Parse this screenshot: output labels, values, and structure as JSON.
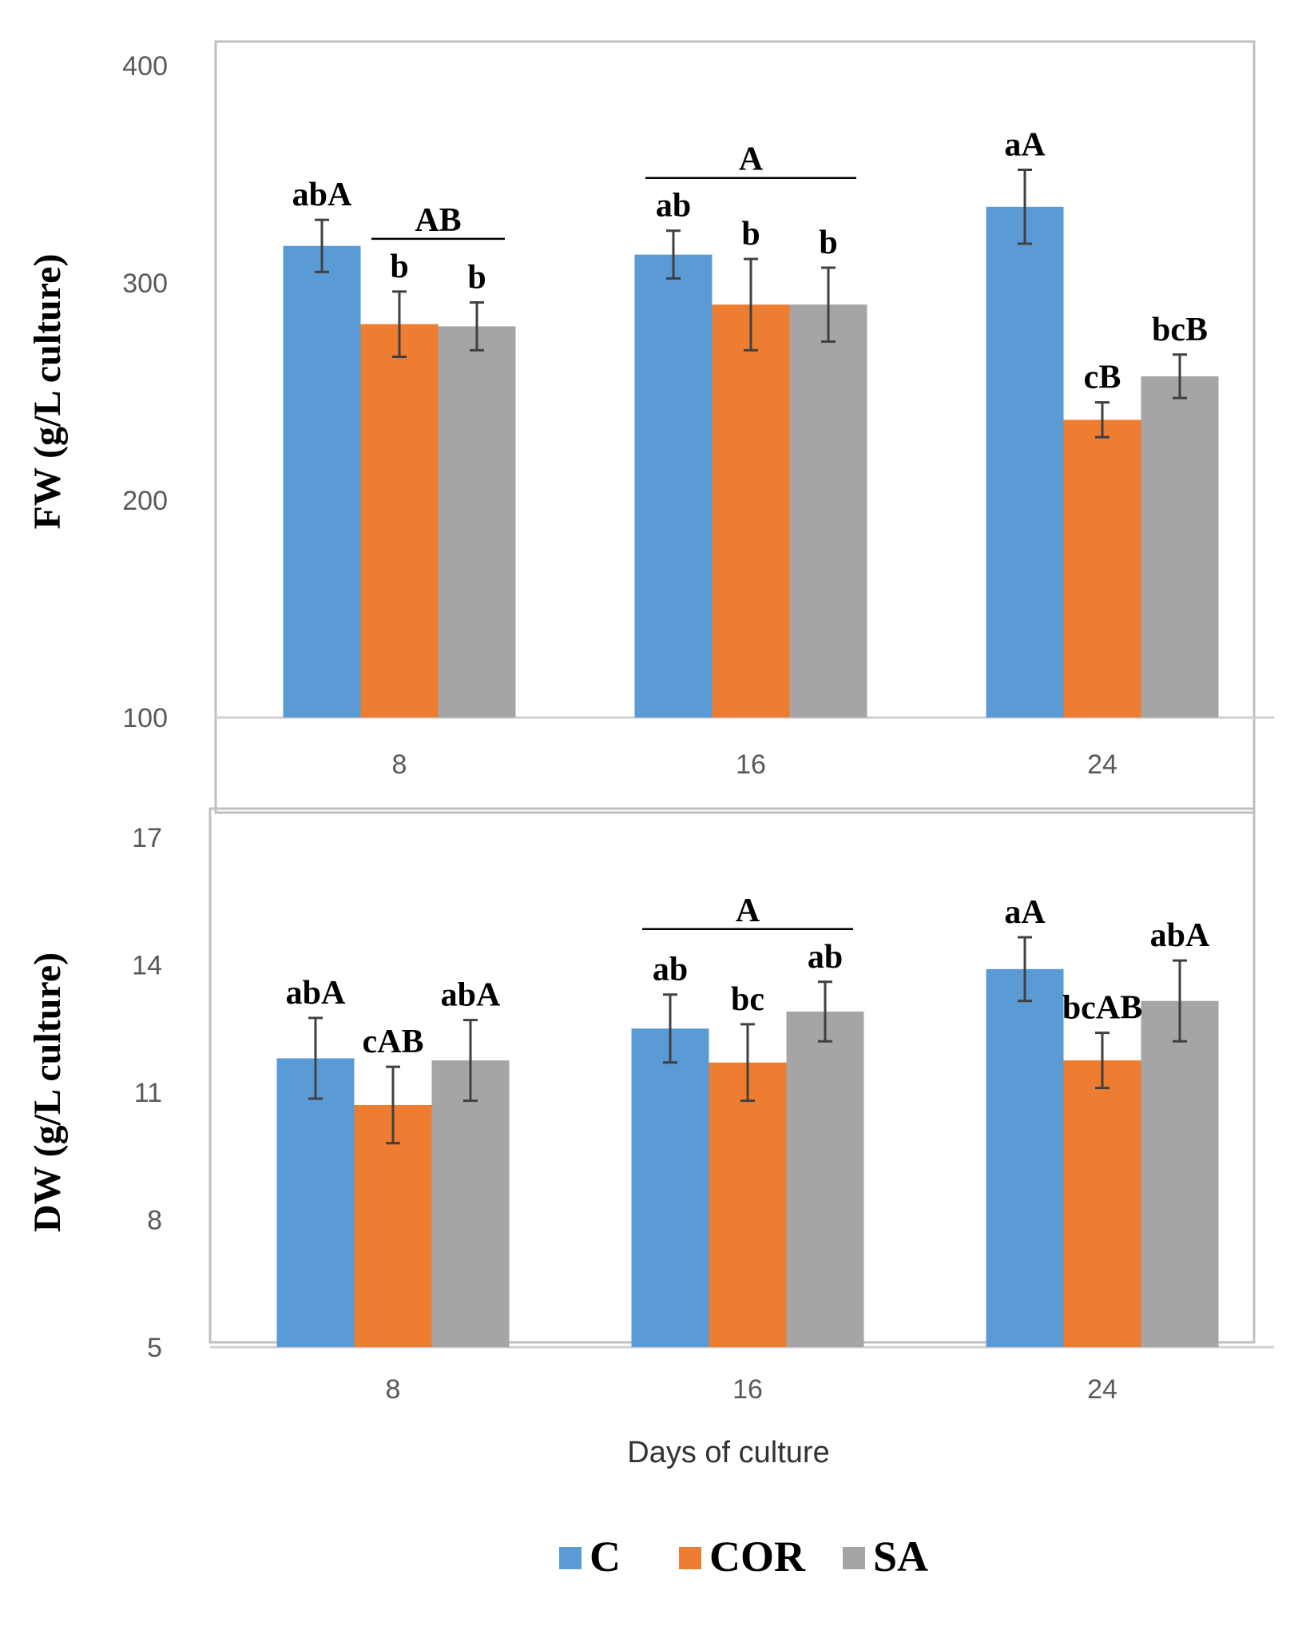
{
  "colors": {
    "C": "#5b9bd5",
    "COR": "#ed7d31",
    "SA": "#a5a5a5",
    "errorbar": "#404040",
    "frame": "#bfbfbf"
  },
  "legend": [
    {
      "name": "C",
      "color": "#5b9bd5"
    },
    {
      "name": "COR",
      "color": "#ed7d31"
    },
    {
      "name": "SA",
      "color": "#a5a5a5"
    }
  ],
  "chart_data": [
    {
      "type": "bar",
      "title": "",
      "ylabel": "FW (g/L culture)",
      "xlabel": "",
      "ylim": [
        100,
        400
      ],
      "yticks": [
        100,
        200,
        300,
        400
      ],
      "categories": [
        "8",
        "16",
        "24"
      ],
      "series": [
        {
          "name": "C",
          "values": [
            317,
            313,
            335
          ],
          "errors": [
            12,
            11,
            17
          ]
        },
        {
          "name": "COR",
          "values": [
            281,
            290,
            237
          ],
          "errors": [
            15,
            21,
            8
          ]
        },
        {
          "name": "SA",
          "values": [
            280,
            290,
            257
          ],
          "errors": [
            11,
            17,
            10
          ]
        }
      ],
      "bar_labels": [
        [
          "abA",
          "b",
          "b"
        ],
        [
          "ab",
          "b",
          "b"
        ],
        [
          "aA",
          "cB",
          "bcB"
        ]
      ],
      "group_labels": [
        {
          "category": "8",
          "span": [
            "COR",
            "SA"
          ],
          "text": "AB"
        },
        {
          "category": "16",
          "span": [
            "C",
            "SA"
          ],
          "text": "A"
        }
      ]
    },
    {
      "type": "bar",
      "title": "",
      "ylabel": "DW (g/L culture)",
      "xlabel": "Days of culture",
      "ylim": [
        5,
        17
      ],
      "yticks": [
        5,
        8,
        11,
        14,
        17
      ],
      "categories": [
        "8",
        "16",
        "24"
      ],
      "series": [
        {
          "name": "C",
          "values": [
            11.8,
            12.5,
            13.9
          ],
          "errors": [
            0.95,
            0.8,
            0.75
          ]
        },
        {
          "name": "COR",
          "values": [
            10.7,
            11.7,
            11.75
          ],
          "errors": [
            0.9,
            0.9,
            0.65
          ]
        },
        {
          "name": "SA",
          "values": [
            11.75,
            12.9,
            13.15
          ],
          "errors": [
            0.95,
            0.7,
            0.95
          ]
        }
      ],
      "bar_labels": [
        [
          "abA",
          "cAB",
          "abA"
        ],
        [
          "ab",
          "bc",
          "ab"
        ],
        [
          "aA",
          "bcAB",
          "abA"
        ]
      ],
      "group_labels": [
        {
          "category": "16",
          "span": [
            "C",
            "SA"
          ],
          "text": "A"
        }
      ]
    }
  ]
}
